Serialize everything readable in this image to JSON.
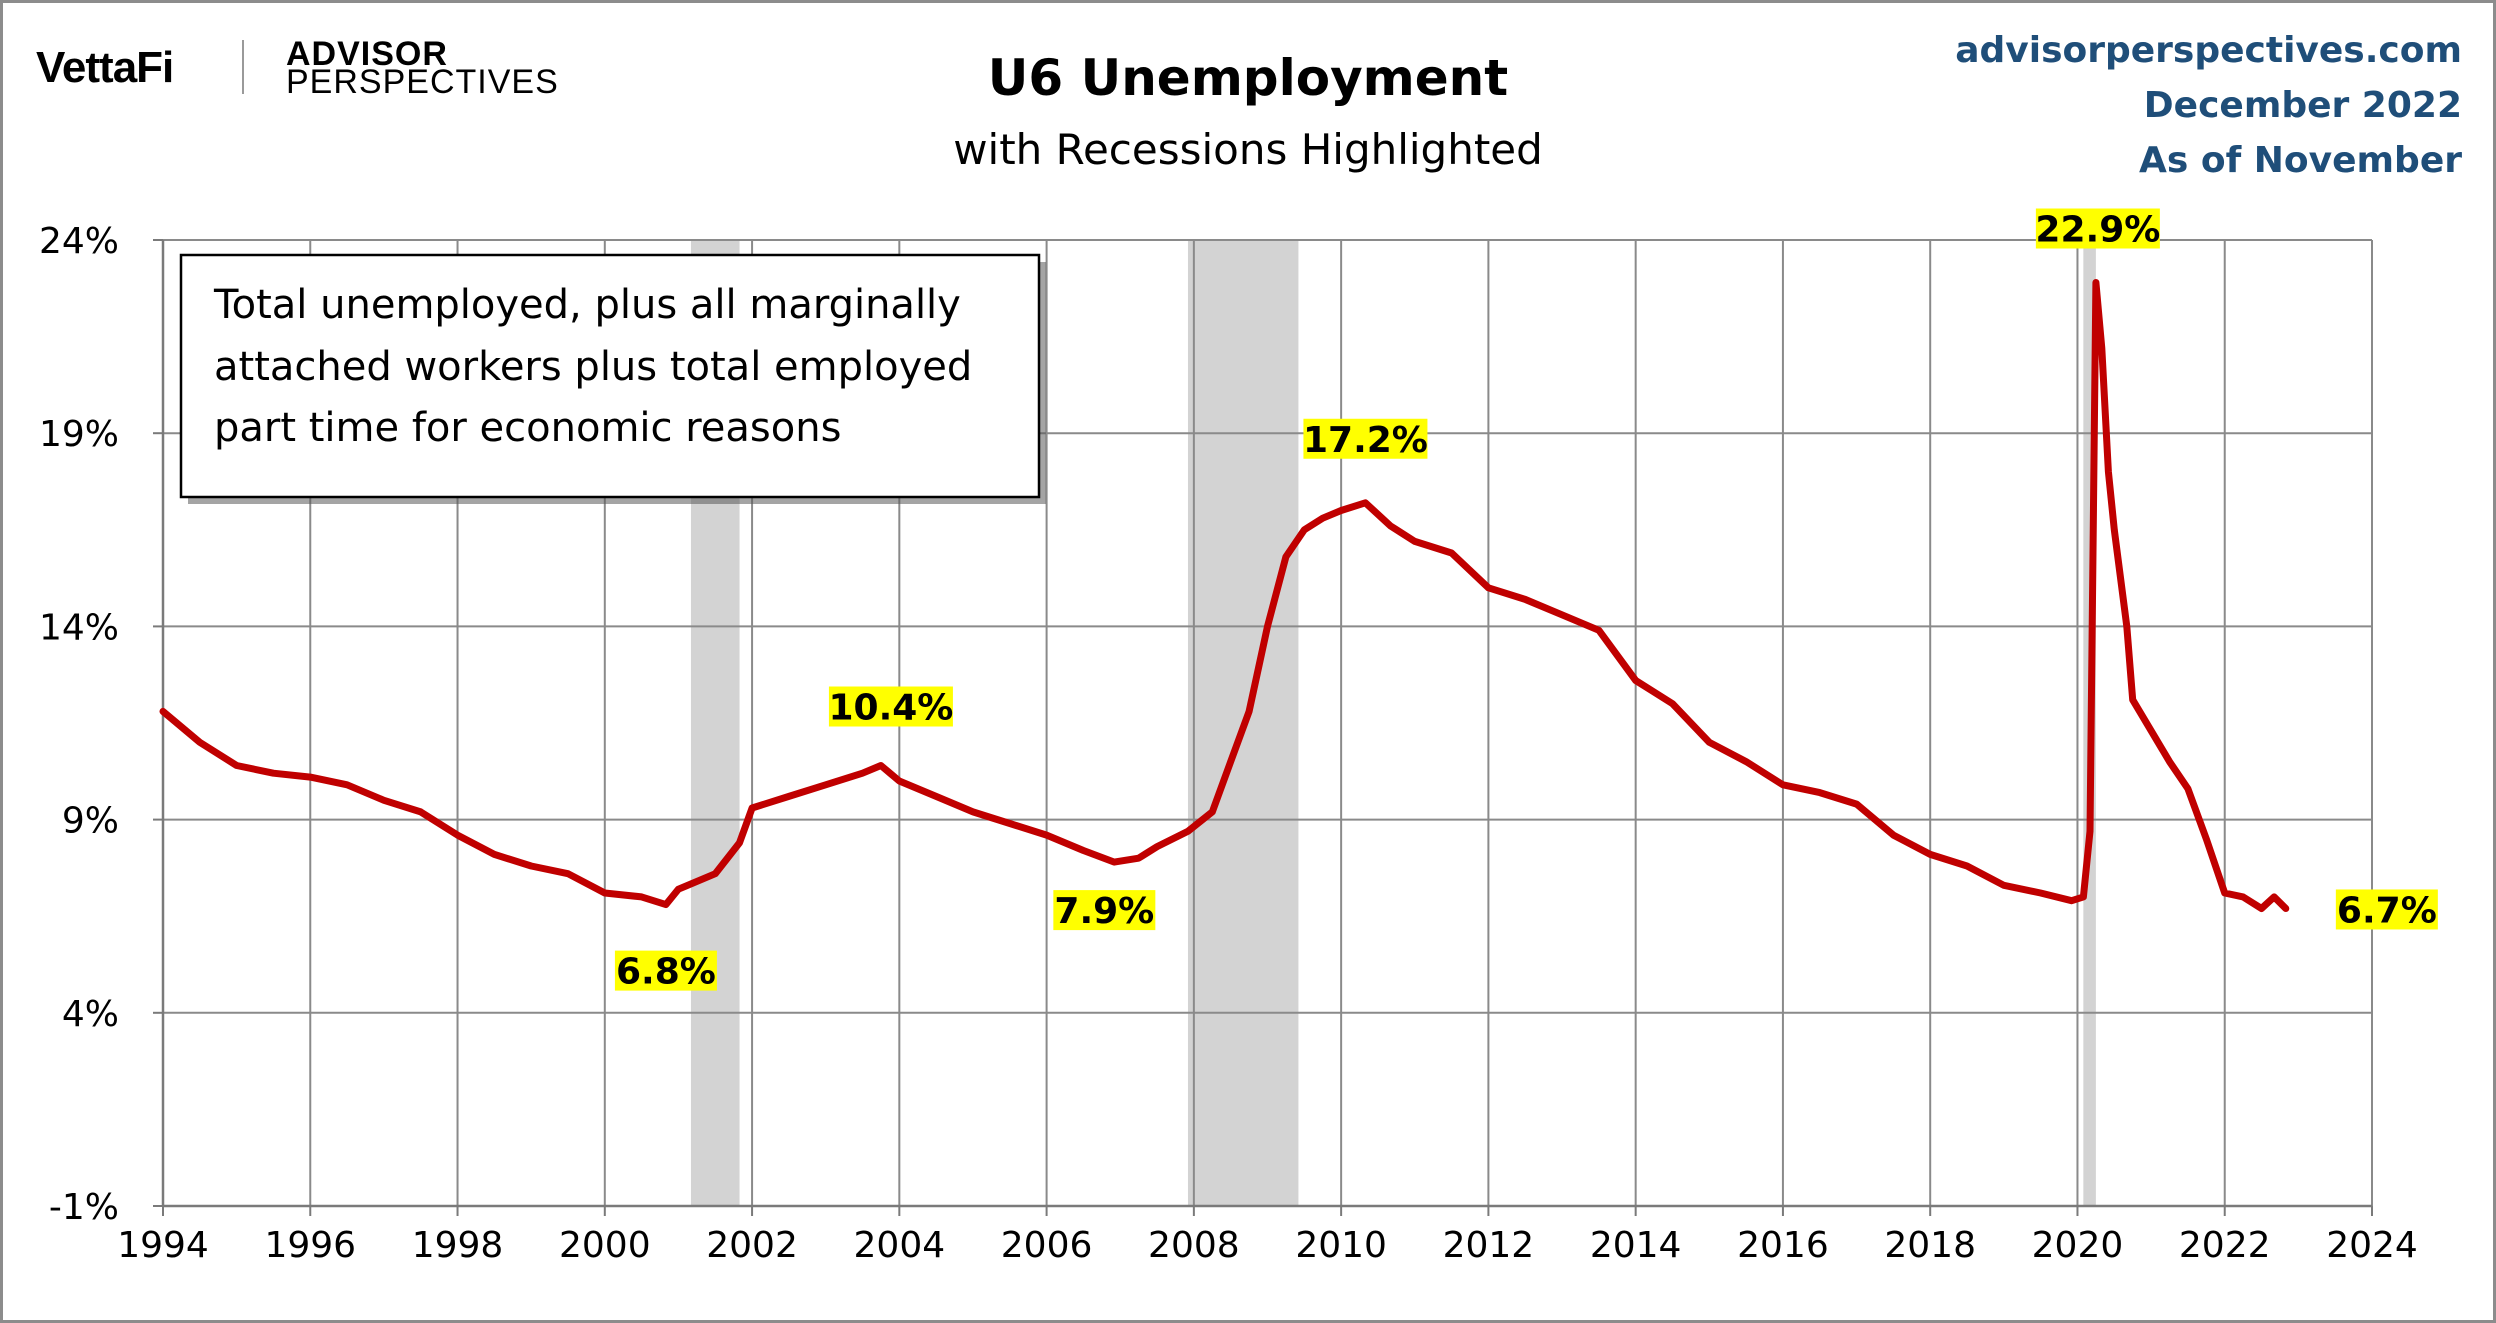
{
  "brand": {
    "vettafi": "VettaFi",
    "advisor": "ADVISOR",
    "perspectives": "PERSPECTIVES"
  },
  "header": {
    "site": "advisorperspectives.com",
    "date": "December 2022",
    "as_of": "As of November"
  },
  "annotation_box": {
    "lines": [
      "Total unemployed, plus all marginally",
      "attached workers plus total employed",
      "part time for economic reasons"
    ]
  },
  "chart_data": {
    "type": "line",
    "title": "U6 Unemployment",
    "subtitle": "with Recessions Highlighted",
    "xlabel": "",
    "ylabel": "",
    "xlim": [
      1994,
      2024
    ],
    "ylim": [
      -1,
      24
    ],
    "x_ticks": [
      1994,
      1996,
      1998,
      2000,
      2002,
      2004,
      2006,
      2008,
      2010,
      2012,
      2014,
      2016,
      2018,
      2020,
      2022,
      2024
    ],
    "x_tick_labels": [
      "1994",
      "1996",
      "1998",
      "2000",
      "2002",
      "2004",
      "2006",
      "2008",
      "2010",
      "2012",
      "2014",
      "2016",
      "2018",
      "2020",
      "2022",
      "2024"
    ],
    "y_ticks": [
      -1,
      4,
      9,
      14,
      19,
      24
    ],
    "y_tick_labels": [
      "-1%",
      "4%",
      "9%",
      "14%",
      "19%",
      "24%"
    ],
    "grid": true,
    "recessions": [
      [
        2001.17,
        2001.83
      ],
      [
        2007.92,
        2009.42
      ],
      [
        2020.08,
        2020.25
      ]
    ],
    "series": [
      {
        "color": "#c00000",
        "points": [
          [
            1994.0,
            11.8
          ],
          [
            1994.5,
            11.0
          ],
          [
            1995.0,
            10.4
          ],
          [
            1995.5,
            10.2
          ],
          [
            1996.0,
            10.1
          ],
          [
            1996.5,
            9.9
          ],
          [
            1997.0,
            9.5
          ],
          [
            1997.5,
            9.2
          ],
          [
            1998.0,
            8.6
          ],
          [
            1998.5,
            8.1
          ],
          [
            1999.0,
            7.8
          ],
          [
            1999.5,
            7.6
          ],
          [
            2000.0,
            7.1
          ],
          [
            2000.5,
            7.0
          ],
          [
            2000.83,
            6.8
          ],
          [
            2001.0,
            7.2
          ],
          [
            2001.5,
            7.6
          ],
          [
            2001.83,
            8.4
          ],
          [
            2002.0,
            9.3
          ],
          [
            2002.5,
            9.6
          ],
          [
            2003.0,
            9.9
          ],
          [
            2003.5,
            10.2
          ],
          [
            2003.75,
            10.4
          ],
          [
            2004.0,
            10.0
          ],
          [
            2004.5,
            9.6
          ],
          [
            2005.0,
            9.2
          ],
          [
            2005.5,
            8.9
          ],
          [
            2006.0,
            8.6
          ],
          [
            2006.5,
            8.2
          ],
          [
            2006.92,
            7.9
          ],
          [
            2007.25,
            8.0
          ],
          [
            2007.5,
            8.3
          ],
          [
            2007.92,
            8.7
          ],
          [
            2008.25,
            9.2
          ],
          [
            2008.5,
            10.5
          ],
          [
            2008.75,
            11.8
          ],
          [
            2009.0,
            14.0
          ],
          [
            2009.25,
            15.8
          ],
          [
            2009.5,
            16.5
          ],
          [
            2009.75,
            16.8
          ],
          [
            2010.0,
            17.0
          ],
          [
            2010.33,
            17.2
          ],
          [
            2010.67,
            16.6
          ],
          [
            2011.0,
            16.2
          ],
          [
            2011.5,
            15.9
          ],
          [
            2012.0,
            15.0
          ],
          [
            2012.5,
            14.7
          ],
          [
            2013.0,
            14.3
          ],
          [
            2013.5,
            13.9
          ],
          [
            2014.0,
            12.6
          ],
          [
            2014.5,
            12.0
          ],
          [
            2015.0,
            11.0
          ],
          [
            2015.5,
            10.5
          ],
          [
            2016.0,
            9.9
          ],
          [
            2016.5,
            9.7
          ],
          [
            2017.0,
            9.4
          ],
          [
            2017.5,
            8.6
          ],
          [
            2018.0,
            8.1
          ],
          [
            2018.5,
            7.8
          ],
          [
            2019.0,
            7.3
          ],
          [
            2019.5,
            7.1
          ],
          [
            2019.92,
            6.9
          ],
          [
            2020.08,
            7.0
          ],
          [
            2020.17,
            8.7
          ],
          [
            2020.25,
            22.9
          ],
          [
            2020.33,
            21.2
          ],
          [
            2020.42,
            18.0
          ],
          [
            2020.5,
            16.5
          ],
          [
            2020.67,
            14.0
          ],
          [
            2020.75,
            12.1
          ],
          [
            2021.0,
            11.3
          ],
          [
            2021.25,
            10.5
          ],
          [
            2021.5,
            9.8
          ],
          [
            2021.75,
            8.5
          ],
          [
            2022.0,
            7.1
          ],
          [
            2022.25,
            7.0
          ],
          [
            2022.5,
            6.7
          ],
          [
            2022.67,
            7.0
          ],
          [
            2022.83,
            6.7
          ]
        ]
      }
    ],
    "data_labels": [
      {
        "text": "6.8%",
        "x": 2000.83,
        "y": 6.8
      },
      {
        "text": "10.4%",
        "x": 2003.75,
        "y": 10.4
      },
      {
        "text": "7.9%",
        "x": 2006.92,
        "y": 7.9
      },
      {
        "text": "17.2%",
        "x": 2010.33,
        "y": 17.2
      },
      {
        "text": "22.9%",
        "x": 2020.25,
        "y": 22.9
      },
      {
        "text": "6.7%",
        "x": 2022.83,
        "y": 6.7
      }
    ],
    "label_highlight": "#ffff00"
  }
}
